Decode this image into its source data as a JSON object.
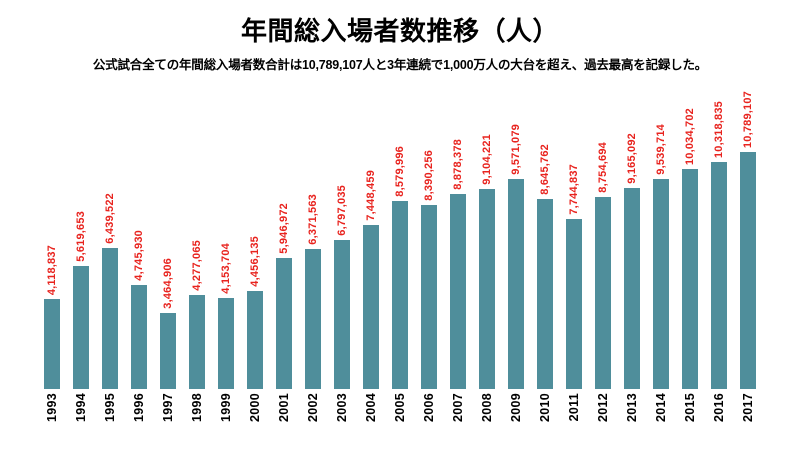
{
  "header": {
    "title": "年間総入場者数推移（人）",
    "subtitle": "公式試合全ての年間総入場者数合計は10,789,107人と3年連続で1,000万人の大台を超え、過去最高を記録した。"
  },
  "colors": {
    "bar": "#4f8e9b",
    "value_label": "#e8231e",
    "text": "#000000",
    "background": "#ffffff"
  },
  "chart_data": {
    "type": "bar",
    "title": "年間総入場者数推移（人）",
    "subtitle": "公式試合全ての年間総入場者数合計は10,789,107人と3年連続で1,000万人の大台を超え、過去最高を記録した。",
    "xlabel": "",
    "ylabel": "",
    "ylim": [
      0,
      10789107
    ],
    "grid": false,
    "legend": "none",
    "value_label_format": "#,###",
    "categories": [
      "1993",
      "1994",
      "1995",
      "1996",
      "1997",
      "1998",
      "1999",
      "2000",
      "2001",
      "2002",
      "2003",
      "2004",
      "2005",
      "2006",
      "2007",
      "2008",
      "2009",
      "2010",
      "2011",
      "2012",
      "2013",
      "2014",
      "2015",
      "2016",
      "2017"
    ],
    "values": [
      4118837,
      5619653,
      6439522,
      4745930,
      3464906,
      4277065,
      4153704,
      4456135,
      5946972,
      6371563,
      6797035,
      7448459,
      8579996,
      8390256,
      8878378,
      9104221,
      9571079,
      8645762,
      7744837,
      8754694,
      9165092,
      9539714,
      10034702,
      10318835,
      10789107
    ],
    "value_labels": [
      "4,118,837",
      "5,619,653",
      "6,439,522",
      "4,745,930",
      "3,464,906",
      "4,277,065",
      "4,153,704",
      "4,456,135",
      "5,946,972",
      "6,371,563",
      "6,797,035",
      "7,448,459",
      "8,579,996",
      "8,390,256",
      "8,878,378",
      "9,104,221",
      "9,571,079",
      "8,645,762",
      "7,744,837",
      "8,754,694",
      "9,165,092",
      "9,539,714",
      "10,034,702",
      "10,318,835",
      "10,789,107"
    ]
  }
}
